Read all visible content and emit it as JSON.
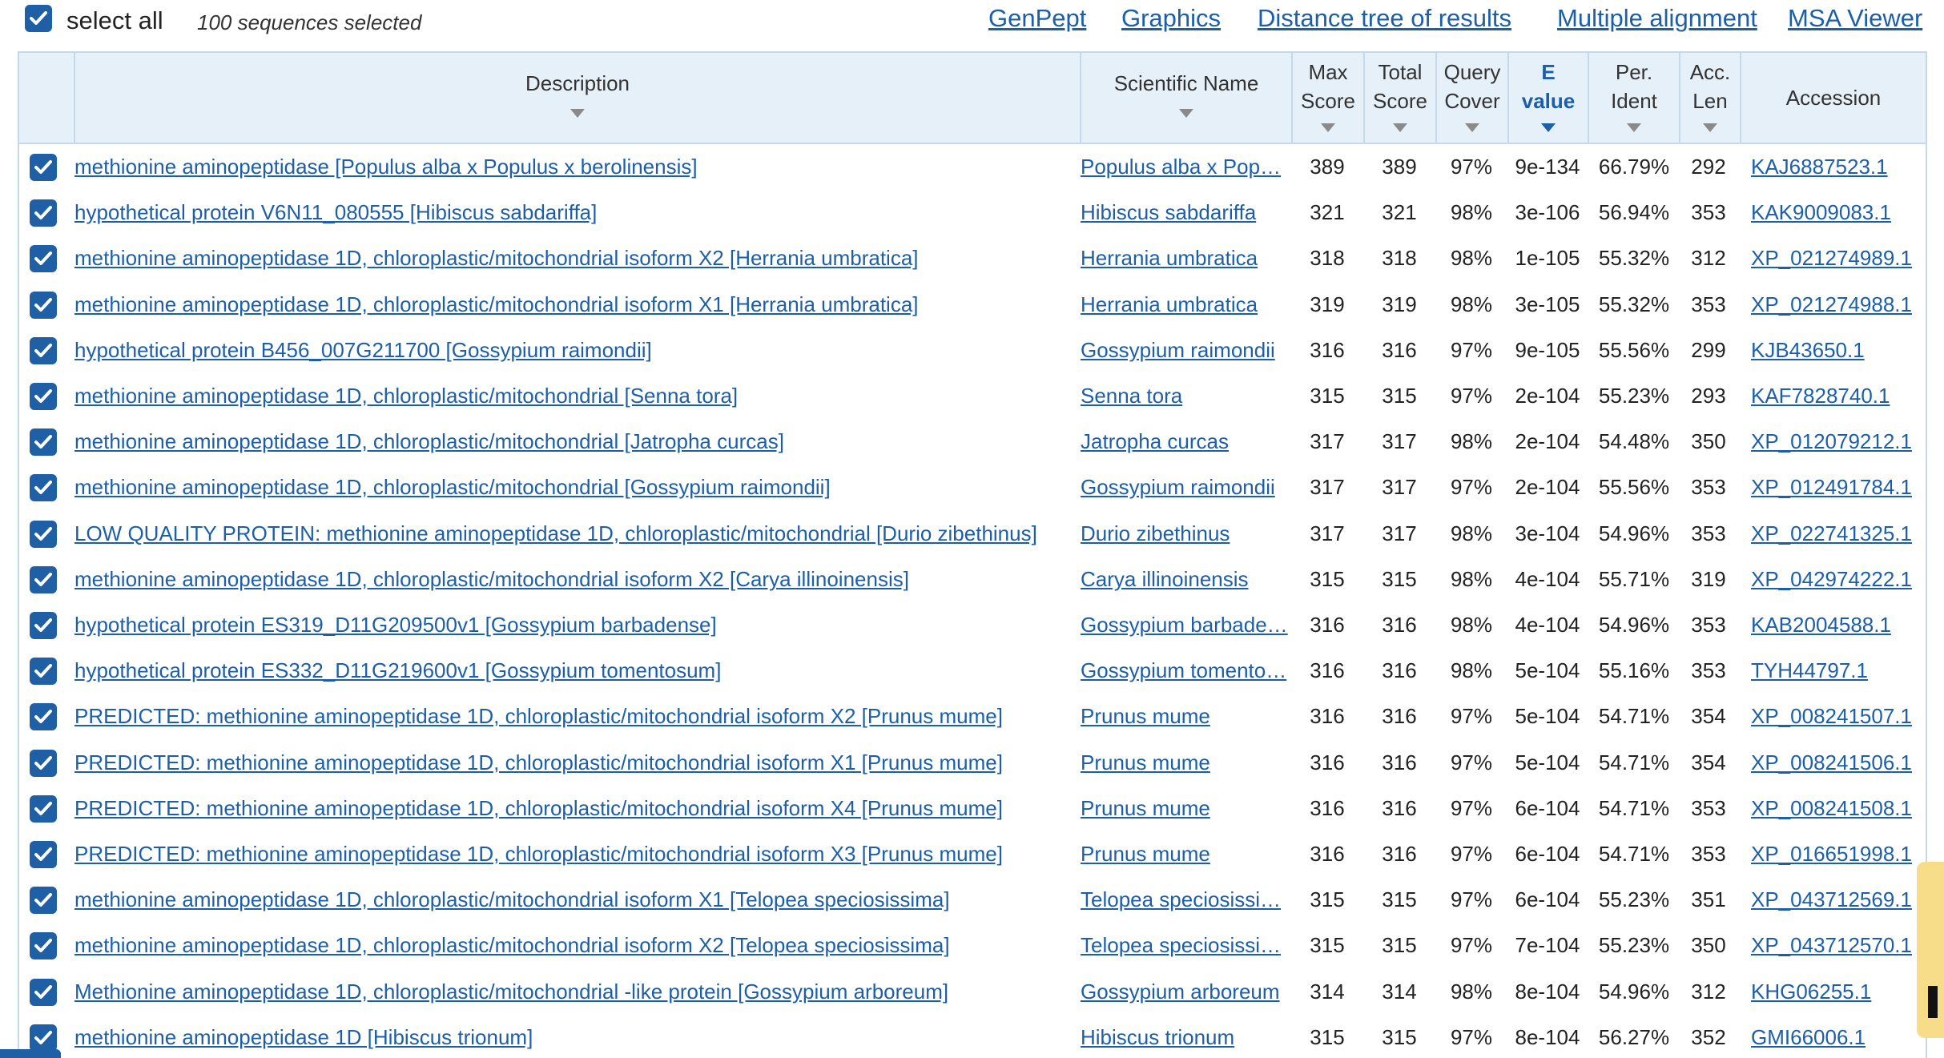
{
  "topbar": {
    "select_all_label": "select all",
    "selected_count": "100 sequences selected",
    "links": [
      "GenPept",
      "Graphics",
      "Distance tree of results",
      "Multiple alignment",
      "MSA Viewer"
    ]
  },
  "columns": {
    "description": "Description",
    "scientific_name": "Scientific Name",
    "max_score": [
      "Max",
      "Score"
    ],
    "total_score": [
      "Total",
      "Score"
    ],
    "query_cover": [
      "Query",
      "Cover"
    ],
    "e_value": [
      "E",
      "value"
    ],
    "per_ident": [
      "Per.",
      "Ident"
    ],
    "acc_len": [
      "Acc.",
      "Len"
    ],
    "accession": "Accession"
  },
  "colors": {
    "link": "#1c5fa8",
    "header_bg": "#e5f0f9",
    "border": "#c6d9ea",
    "checkbox": "#1f5fa6"
  },
  "icons": {
    "checkbox": "checkbox-checked-icon",
    "sort": "sort-down-icon"
  },
  "rows": [
    {
      "desc": "methionine aminopeptidase [Populus alba x Populus x berolinensis]",
      "sci": "Populus alba x Pop…",
      "max": "389",
      "total": "389",
      "cover": "97%",
      "e": "9e-134",
      "ident": "66.79%",
      "len": "292",
      "acc": "KAJ6887523.1"
    },
    {
      "desc": "hypothetical protein V6N11_080555 [Hibiscus sabdariffa]",
      "sci": "Hibiscus sabdariffa",
      "max": "321",
      "total": "321",
      "cover": "98%",
      "e": "3e-106",
      "ident": "56.94%",
      "len": "353",
      "acc": "KAK9009083.1"
    },
    {
      "desc": "methionine aminopeptidase 1D, chloroplastic/mitochondrial isoform X2 [Herrania umbratica]",
      "sci": "Herrania umbratica",
      "max": "318",
      "total": "318",
      "cover": "98%",
      "e": "1e-105",
      "ident": "55.32%",
      "len": "312",
      "acc": "XP_021274989.1"
    },
    {
      "desc": "methionine aminopeptidase 1D, chloroplastic/mitochondrial isoform X1 [Herrania umbratica]",
      "sci": "Herrania umbratica",
      "max": "319",
      "total": "319",
      "cover": "98%",
      "e": "3e-105",
      "ident": "55.32%",
      "len": "353",
      "acc": "XP_021274988.1"
    },
    {
      "desc": "hypothetical protein B456_007G211700 [Gossypium raimondii]",
      "sci": "Gossypium raimondii",
      "max": "316",
      "total": "316",
      "cover": "97%",
      "e": "9e-105",
      "ident": "55.56%",
      "len": "299",
      "acc": "KJB43650.1"
    },
    {
      "desc": "methionine aminopeptidase 1D, chloroplastic/mitochondrial [Senna tora]",
      "sci": "Senna tora",
      "max": "315",
      "total": "315",
      "cover": "97%",
      "e": "2e-104",
      "ident": "55.23%",
      "len": "293",
      "acc": "KAF7828740.1"
    },
    {
      "desc": "methionine aminopeptidase 1D, chloroplastic/mitochondrial [Jatropha curcas]",
      "sci": "Jatropha curcas",
      "max": "317",
      "total": "317",
      "cover": "98%",
      "e": "2e-104",
      "ident": "54.48%",
      "len": "350",
      "acc": "XP_012079212.1"
    },
    {
      "desc": "methionine aminopeptidase 1D, chloroplastic/mitochondrial [Gossypium raimondii]",
      "sci": "Gossypium raimondii",
      "max": "317",
      "total": "317",
      "cover": "97%",
      "e": "2e-104",
      "ident": "55.56%",
      "len": "353",
      "acc": "XP_012491784.1"
    },
    {
      "desc": "LOW QUALITY PROTEIN: methionine aminopeptidase 1D, chloroplastic/mitochondrial [Durio zibethinus]",
      "sci": "Durio zibethinus",
      "max": "317",
      "total": "317",
      "cover": "98%",
      "e": "3e-104",
      "ident": "54.96%",
      "len": "353",
      "acc": "XP_022741325.1"
    },
    {
      "desc": "methionine aminopeptidase 1D, chloroplastic/mitochondrial isoform X2 [Carya illinoinensis]",
      "sci": "Carya illinoinensis",
      "max": "315",
      "total": "315",
      "cover": "98%",
      "e": "4e-104",
      "ident": "55.71%",
      "len": "319",
      "acc": "XP_042974222.1"
    },
    {
      "desc": "hypothetical protein ES319_D11G209500v1 [Gossypium barbadense]",
      "sci": "Gossypium barbade…",
      "max": "316",
      "total": "316",
      "cover": "98%",
      "e": "4e-104",
      "ident": "54.96%",
      "len": "353",
      "acc": "KAB2004588.1"
    },
    {
      "desc": "hypothetical protein ES332_D11G219600v1 [Gossypium tomentosum]",
      "sci": "Gossypium tomento…",
      "max": "316",
      "total": "316",
      "cover": "98%",
      "e": "5e-104",
      "ident": "55.16%",
      "len": "353",
      "acc": "TYH44797.1"
    },
    {
      "desc": "PREDICTED: methionine aminopeptidase 1D, chloroplastic/mitochondrial isoform X2 [Prunus mume]",
      "sci": "Prunus mume",
      "max": "316",
      "total": "316",
      "cover": "97%",
      "e": "5e-104",
      "ident": "54.71%",
      "len": "354",
      "acc": "XP_008241507.1"
    },
    {
      "desc": "PREDICTED: methionine aminopeptidase 1D, chloroplastic/mitochondrial isoform X1 [Prunus mume]",
      "sci": "Prunus mume",
      "max": "316",
      "total": "316",
      "cover": "97%",
      "e": "5e-104",
      "ident": "54.71%",
      "len": "354",
      "acc": "XP_008241506.1"
    },
    {
      "desc": "PREDICTED: methionine aminopeptidase 1D, chloroplastic/mitochondrial isoform X4 [Prunus mume]",
      "sci": "Prunus mume",
      "max": "316",
      "total": "316",
      "cover": "97%",
      "e": "6e-104",
      "ident": "54.71%",
      "len": "353",
      "acc": "XP_008241508.1"
    },
    {
      "desc": "PREDICTED: methionine aminopeptidase 1D, chloroplastic/mitochondrial isoform X3 [Prunus mume]",
      "sci": "Prunus mume",
      "max": "316",
      "total": "316",
      "cover": "97%",
      "e": "6e-104",
      "ident": "54.71%",
      "len": "353",
      "acc": "XP_016651998.1"
    },
    {
      "desc": "methionine aminopeptidase 1D, chloroplastic/mitochondrial isoform X1 [Telopea speciosissima]",
      "sci": "Telopea speciosissi…",
      "max": "315",
      "total": "315",
      "cover": "97%",
      "e": "6e-104",
      "ident": "55.23%",
      "len": "351",
      "acc": "XP_043712569.1"
    },
    {
      "desc": "methionine aminopeptidase 1D, chloroplastic/mitochondrial isoform X2 [Telopea speciosissima]",
      "sci": "Telopea speciosissi…",
      "max": "315",
      "total": "315",
      "cover": "97%",
      "e": "7e-104",
      "ident": "55.23%",
      "len": "350",
      "acc": "XP_043712570.1"
    },
    {
      "desc": "Methionine aminopeptidase 1D, chloroplastic/mitochondrial -like protein [Gossypium arboreum]",
      "sci": "Gossypium arboreum",
      "max": "314",
      "total": "314",
      "cover": "98%",
      "e": "8e-104",
      "ident": "54.96%",
      "len": "312",
      "acc": "KHG06255.1"
    },
    {
      "desc": "methionine aminopeptidase 1D [Hibiscus trionum]",
      "sci": "Hibiscus trionum",
      "max": "315",
      "total": "315",
      "cover": "97%",
      "e": "8e-104",
      "ident": "56.27%",
      "len": "352",
      "acc": "GMI66006.1"
    }
  ]
}
